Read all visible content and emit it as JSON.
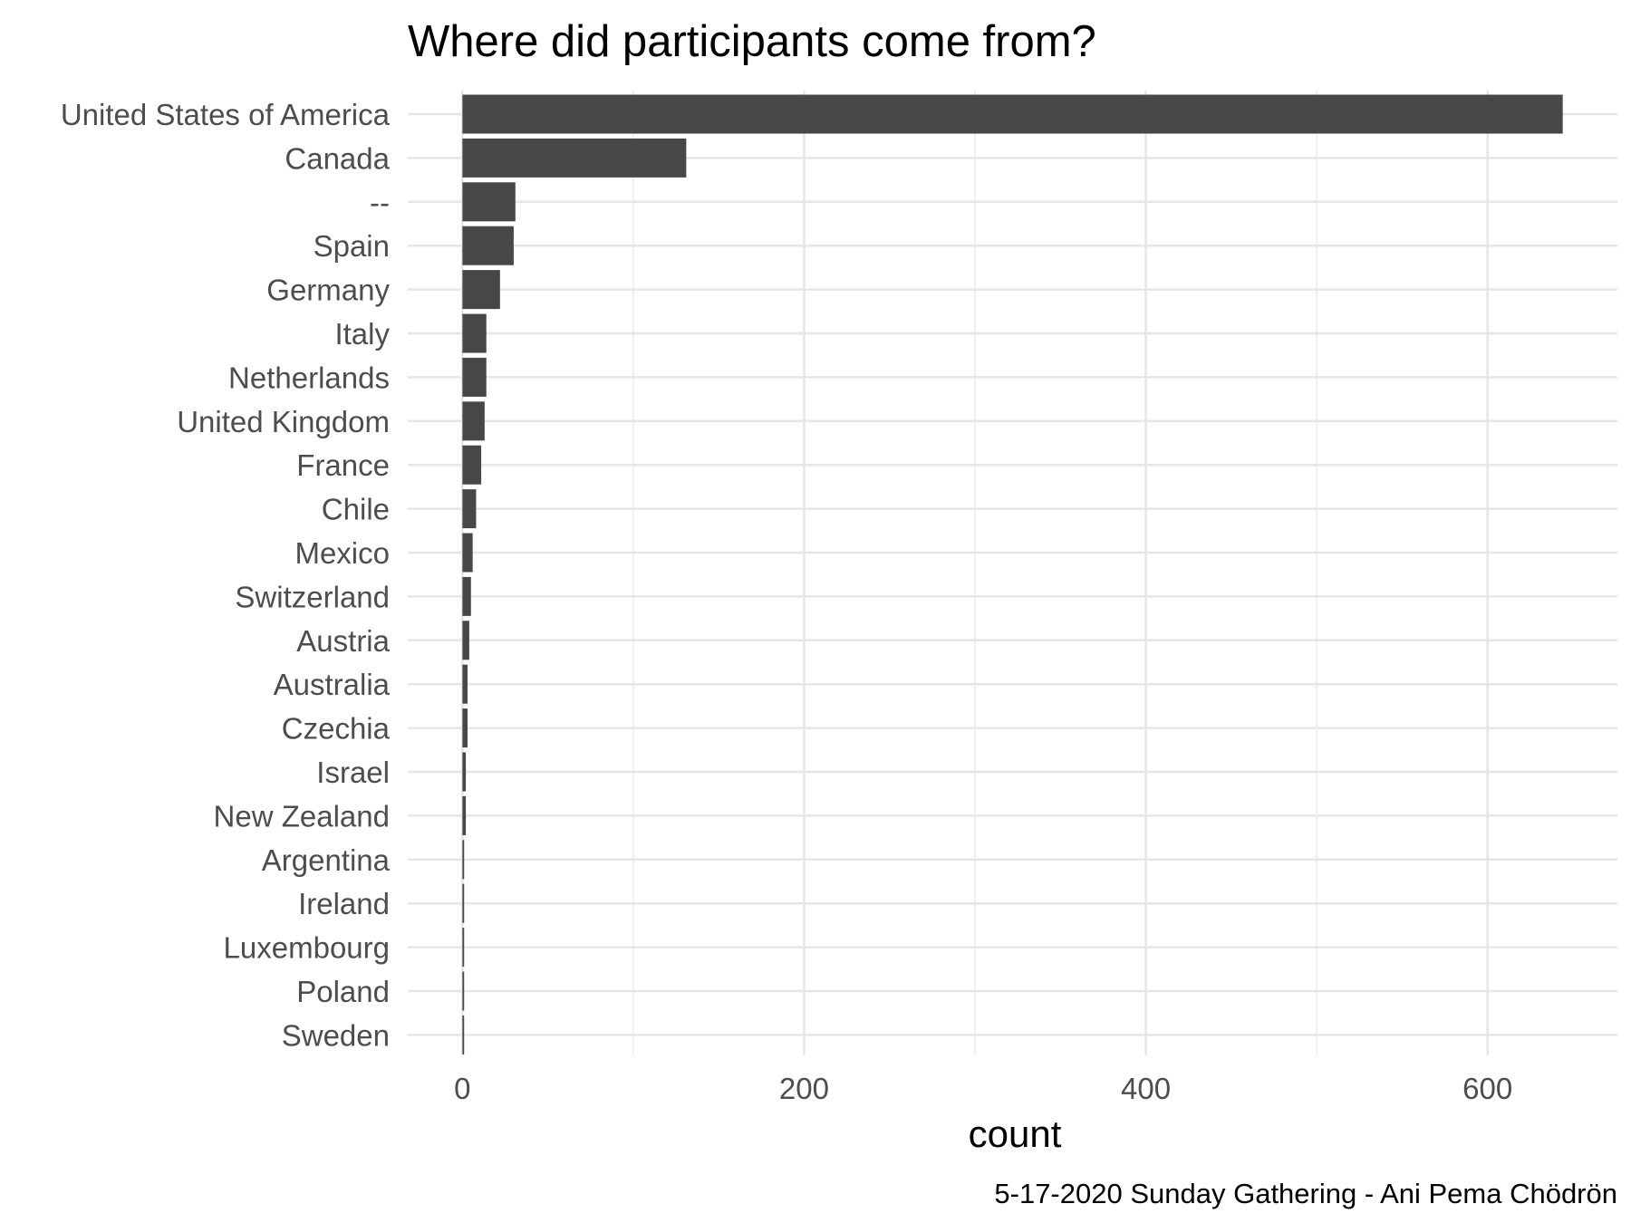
{
  "chart_data": {
    "type": "bar",
    "orientation": "horizontal",
    "title": "Where did participants come from?",
    "xlabel": "count",
    "ylabel": "",
    "caption": "5-17-2020 Sunday Gathering - Ani Pema Chödrön",
    "xlim": [
      -32,
      676
    ],
    "x_ticks": [
      0,
      200,
      400,
      600
    ],
    "grid": true,
    "bar_color": "#474747",
    "categories": [
      "United States of America",
      "Canada",
      "--",
      "Spain",
      "Germany",
      "Italy",
      "Netherlands",
      "United Kingdom",
      "France",
      "Chile",
      "Mexico",
      "Switzerland",
      "Austria",
      "Australia",
      "Czechia",
      "Israel",
      "New Zealand",
      "Argentina",
      "Ireland",
      "Luxembourg",
      "Poland",
      "Sweden"
    ],
    "values": [
      644,
      131,
      31,
      30,
      22,
      14,
      14,
      13,
      11,
      8,
      6,
      5,
      4,
      3,
      3,
      2,
      2,
      1,
      1,
      1,
      1,
      1
    ]
  }
}
